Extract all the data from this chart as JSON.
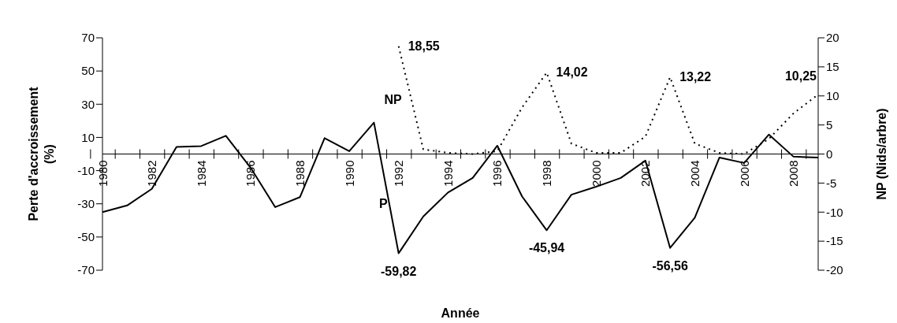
{
  "chart_data": {
    "type": "line",
    "xlabel": "Année",
    "ylabel": "Perte d'accroissement (%)",
    "y2label": "NP (Nids/arbre)",
    "categories": [
      "1980",
      null,
      "1982",
      null,
      "1984",
      null,
      "1986",
      null,
      "1988",
      null,
      "1990",
      null,
      "1992",
      null,
      "1994",
      null,
      "1996",
      null,
      "1998",
      null,
      "2000",
      null,
      "2002",
      null,
      "2004",
      null,
      "2006",
      null,
      "2008",
      null
    ],
    "series": [
      {
        "name": "P",
        "color": "#000000",
        "line_style": "solid",
        "values": [
          -35,
          -31,
          -21,
          4.3,
          4.8,
          11,
          -8.2,
          -32,
          -26,
          9.6,
          1.7,
          18.9,
          -59.82,
          -37.6,
          -23.2,
          -14.4,
          5,
          -25.5,
          -45.94,
          -24.5,
          -19.7,
          -14.4,
          -4,
          -56.56,
          -38.4,
          -2.1,
          -5.4,
          11.7,
          -1.6,
          -2.1
        ],
        "value_labels": [
          null,
          null,
          null,
          null,
          null,
          null,
          null,
          null,
          null,
          null,
          null,
          null,
          "-59,82",
          null,
          null,
          null,
          null,
          null,
          "-45,94",
          null,
          null,
          null,
          null,
          "-56,56",
          null,
          null,
          null,
          null,
          null,
          null
        ]
      },
      {
        "name": "NP",
        "color": "#000000",
        "line_style": "dotted",
        "axis": "y2",
        "values": [
          null,
          null,
          null,
          null,
          null,
          null,
          null,
          null,
          null,
          null,
          null,
          null,
          18.55,
          0.8,
          0.2,
          0,
          0.5,
          8,
          14.02,
          1.8,
          0.2,
          0.2,
          3,
          13.22,
          1.8,
          0.2,
          0,
          2.6,
          7,
          10.25
        ],
        "value_labels": [
          null,
          null,
          null,
          null,
          null,
          null,
          null,
          null,
          null,
          null,
          null,
          null,
          "18,55",
          null,
          null,
          null,
          null,
          null,
          "14,02",
          null,
          null,
          null,
          null,
          "13,22",
          null,
          null,
          null,
          null,
          null,
          "10,25"
        ]
      }
    ],
    "ylim": [
      -70,
      70
    ],
    "yticks": [
      -70,
      -50,
      -30,
      -10,
      10,
      30,
      50,
      70
    ],
    "y2lim": [
      -20,
      20
    ],
    "y2ticks": [
      -20,
      -15,
      -10,
      -5,
      0,
      5,
      10,
      15,
      20
    ]
  }
}
